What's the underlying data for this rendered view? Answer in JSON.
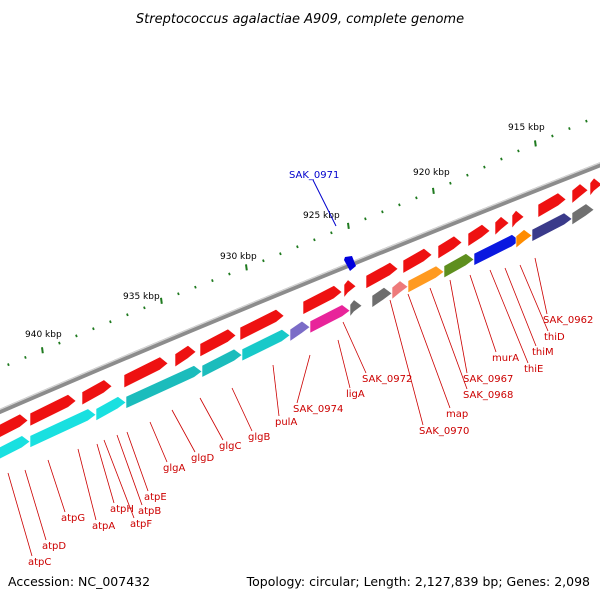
{
  "title": "Streptococcus agalactiae A909, complete genome",
  "footer": {
    "accession": "Accession: NC_007432",
    "summary": "Topology: circular; Length: 2,127,839 bp; Genes: 2,098"
  },
  "colors": {
    "background": "#ffffff",
    "backbone": "#8c8c8c",
    "gene_arrow": "#ee1111",
    "tick": "#1f7a1f",
    "label": "#cc0000",
    "highlight": "#0000dd"
  },
  "scale_labels": [
    "915 kbp",
    "920 kbp",
    "925 kbp",
    "930 kbp",
    "935 kbp",
    "940 kbp"
  ],
  "highlight": {
    "label": "SAK_0971"
  },
  "gene_labels": [
    "SAK_0962",
    "thiD",
    "thiM",
    "thiE",
    "murA",
    "SAK_0967",
    "SAK_0968",
    "map",
    "SAK_0970",
    "SAK_0972",
    "ligA",
    "SAK_0974",
    "pulA",
    "glgB",
    "glgC",
    "glgD",
    "glgA",
    "atpE",
    "atpB",
    "atpF",
    "atpH",
    "atpA",
    "atpG",
    "atpD",
    "atpC"
  ]
}
